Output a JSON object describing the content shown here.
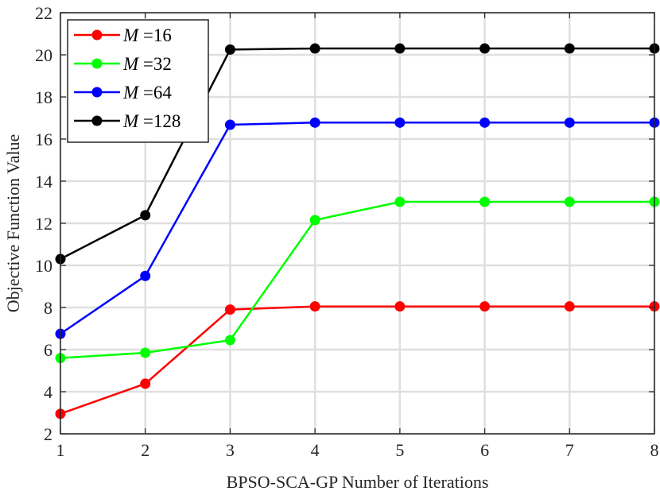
{
  "chart_data": {
    "type": "line",
    "title": "",
    "xlabel": "BPSO-SCA-GP Number of Iterations",
    "ylabel": "Objective Function Value",
    "x": [
      1,
      2,
      3,
      4,
      5,
      6,
      7,
      8
    ],
    "xlim": [
      1,
      8
    ],
    "ylim": [
      2,
      22
    ],
    "xticks": [
      1,
      2,
      3,
      4,
      5,
      6,
      7,
      8
    ],
    "yticks": [
      2,
      4,
      6,
      8,
      10,
      12,
      14,
      16,
      18,
      20,
      22
    ],
    "grid": true,
    "legend_position": "top-left",
    "legend_var": "M",
    "legend_eq": "=",
    "series": [
      {
        "name": "M =16",
        "legend_value": "16",
        "color": "#ff0000",
        "values": [
          2.95,
          4.38,
          7.9,
          8.05,
          8.05,
          8.05,
          8.05,
          8.05
        ]
      },
      {
        "name": "M =32",
        "legend_value": "32",
        "color": "#00ff00",
        "values": [
          5.6,
          5.85,
          6.45,
          12.15,
          13.02,
          13.02,
          13.02,
          13.02
        ]
      },
      {
        "name": "M =64",
        "legend_value": "64",
        "color": "#0000ff",
        "values": [
          6.75,
          9.5,
          16.68,
          16.78,
          16.78,
          16.78,
          16.78,
          16.78
        ]
      },
      {
        "name": "M =128",
        "legend_value": "128",
        "color": "#000000",
        "values": [
          10.3,
          12.38,
          20.25,
          20.3,
          20.3,
          20.3,
          20.3,
          20.3
        ]
      }
    ]
  }
}
